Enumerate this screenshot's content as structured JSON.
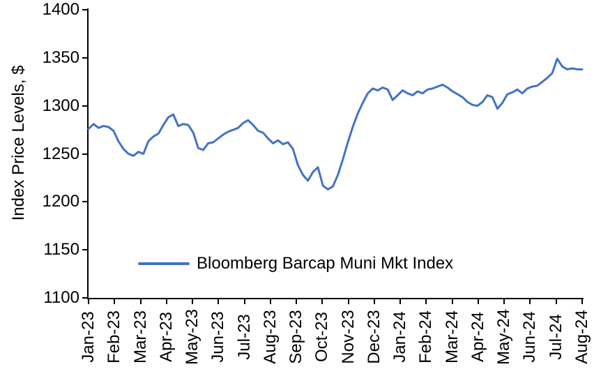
{
  "page": {
    "background": "#ffffff"
  },
  "chart_data": {
    "type": "line",
    "title": "",
    "xlabel": "",
    "ylabel": "Index Price Levels, $",
    "ylim": [
      1100,
      1400
    ],
    "yticks": [
      1400,
      1350,
      1300,
      1250,
      1200,
      1150,
      1100
    ],
    "categories": [
      "Jan-23",
      "Feb-23",
      "Mar-23",
      "Apr-23",
      "May-23",
      "Jun-23",
      "Jul-23",
      "Aug-23",
      "Sep-23",
      "Oct-23",
      "Nov-23",
      "Dec-23",
      "Jan-24",
      "Feb-24",
      "Mar-24",
      "Apr-24",
      "May-24",
      "Jun-24",
      "Jul-24",
      "Aug-24"
    ],
    "grid": false,
    "legend_position": "inside-bottom-left",
    "axis_color": "#000000",
    "series": [
      {
        "name": "Bloomberg Barcap Muni Mkt Index",
        "color": "#4472C4",
        "values": [
          1276,
          1281,
          1277,
          1279,
          1278,
          1274,
          1263,
          1255,
          1250,
          1248,
          1252,
          1250,
          1263,
          1268,
          1271,
          1280,
          1288,
          1291,
          1279,
          1281,
          1280,
          1272,
          1256,
          1254,
          1261,
          1262,
          1266,
          1270,
          1273,
          1275,
          1277,
          1282,
          1285,
          1280,
          1274,
          1272,
          1266,
          1261,
          1264,
          1260,
          1262,
          1255,
          1238,
          1228,
          1222,
          1231,
          1236,
          1217,
          1213,
          1216,
          1228,
          1244,
          1262,
          1278,
          1292,
          1303,
          1313,
          1318,
          1316,
          1319,
          1317,
          1306,
          1311,
          1316,
          1313,
          1311,
          1315,
          1313,
          1317,
          1318,
          1320,
          1322,
          1319,
          1315,
          1312,
          1309,
          1304,
          1301,
          1300,
          1304,
          1311,
          1309,
          1297,
          1303,
          1312,
          1314,
          1317,
          1313,
          1318,
          1320,
          1321,
          1325,
          1329,
          1334,
          1349,
          1341,
          1338,
          1339,
          1338,
          1338
        ]
      }
    ]
  }
}
